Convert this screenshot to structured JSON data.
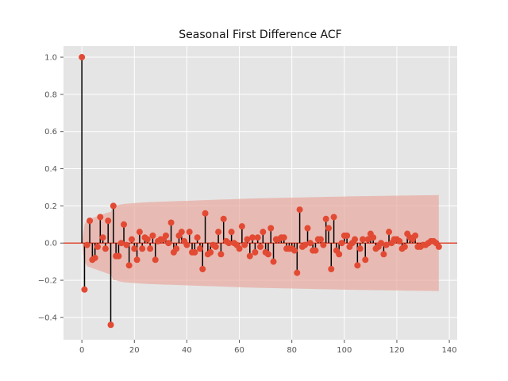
{
  "chart_data": {
    "type": "stem",
    "title": "Seasonal First Difference ACF",
    "xlabel": "",
    "ylabel": "",
    "xlim": [
      -7,
      143
    ],
    "ylim": [
      -0.52,
      1.06
    ],
    "xticks": [
      0,
      20,
      40,
      60,
      80,
      100,
      120,
      140
    ],
    "yticks": [
      -0.4,
      -0.2,
      0.0,
      0.2,
      0.4,
      0.6,
      0.8,
      1.0
    ],
    "xtick_labels": [
      "0",
      "20",
      "40",
      "60",
      "80",
      "100",
      "120",
      "140"
    ],
    "ytick_labels": [
      "−0.4",
      "−0.2",
      "0.0",
      "0.2",
      "0.4",
      "0.6",
      "0.8",
      "1.0"
    ],
    "grid": true,
    "lags": [
      0,
      1,
      2,
      3,
      4,
      5,
      6,
      7,
      8,
      9,
      10,
      11,
      12,
      13,
      14,
      15,
      16,
      17,
      18,
      19,
      20,
      21,
      22,
      23,
      24,
      25,
      26,
      27,
      28,
      29,
      30,
      31,
      32,
      33,
      34,
      35,
      36,
      37,
      38,
      39,
      40,
      41,
      42,
      43,
      44,
      45,
      46,
      47,
      48,
      49,
      50,
      51,
      52,
      53,
      54,
      55,
      56,
      57,
      58,
      59,
      60,
      61,
      62,
      63,
      64,
      65,
      66,
      67,
      68,
      69,
      70,
      71,
      72,
      73,
      74,
      75,
      76,
      77,
      78,
      79,
      80,
      81,
      82,
      83,
      84,
      85,
      86,
      87,
      88,
      89,
      90,
      91,
      92,
      93,
      94,
      95,
      96,
      97,
      98,
      99,
      100,
      101,
      102,
      103,
      104,
      105,
      106,
      107,
      108,
      109,
      110,
      111,
      112,
      113,
      114,
      115,
      116,
      117,
      118,
      119,
      120,
      121,
      122,
      123,
      124,
      125,
      126,
      127,
      128,
      129,
      130,
      131,
      132,
      133,
      134,
      135,
      136
    ],
    "values": [
      1.0,
      -0.25,
      -0.01,
      0.12,
      -0.09,
      -0.08,
      -0.02,
      0.14,
      0.03,
      -0.03,
      0.12,
      -0.44,
      0.2,
      -0.07,
      -0.07,
      0.0,
      0.1,
      -0.01,
      -0.12,
      0.02,
      -0.03,
      -0.09,
      0.06,
      -0.03,
      0.03,
      0.02,
      -0.03,
      0.04,
      -0.09,
      0.01,
      0.02,
      0.02,
      0.04,
      0.0,
      0.11,
      -0.05,
      -0.03,
      0.04,
      0.06,
      0.01,
      -0.01,
      0.06,
      -0.05,
      -0.05,
      0.03,
      -0.03,
      -0.14,
      0.16,
      -0.06,
      -0.05,
      -0.01,
      -0.02,
      0.06,
      -0.06,
      0.13,
      0.01,
      0.0,
      0.06,
      0.0,
      -0.01,
      -0.03,
      0.09,
      -0.01,
      0.02,
      -0.07,
      0.03,
      -0.05,
      0.03,
      -0.02,
      0.06,
      -0.05,
      -0.06,
      0.08,
      -0.1,
      0.02,
      0.02,
      0.03,
      0.03,
      -0.03,
      -0.03,
      -0.03,
      -0.04,
      -0.16,
      0.18,
      -0.02,
      -0.01,
      0.08,
      0.0,
      -0.04,
      -0.04,
      0.02,
      0.02,
      -0.01,
      0.13,
      0.08,
      -0.14,
      0.14,
      -0.04,
      -0.06,
      0.0,
      0.04,
      0.04,
      -0.02,
      0.0,
      0.02,
      -0.12,
      -0.03,
      0.02,
      -0.09,
      0.02,
      0.05,
      0.03,
      -0.03,
      -0.02,
      0.0,
      -0.06,
      -0.01,
      0.06,
      0.0,
      0.02,
      0.02,
      0.01,
      -0.03,
      -0.02,
      0.05,
      0.03,
      0.02,
      0.04,
      -0.02,
      -0.02,
      -0.01,
      -0.01,
      0.0,
      0.01,
      0.01,
      0.0,
      -0.02
    ],
    "confint_upper": [
      0.0,
      0.1,
      0.125,
      0.13,
      0.135,
      0.14,
      0.145,
      0.15,
      0.155,
      0.16,
      0.165,
      0.168,
      0.2,
      0.2,
      0.205,
      0.208,
      0.211,
      0.212,
      0.213,
      0.214,
      0.215,
      0.216,
      0.217,
      0.218,
      0.219,
      0.22,
      0.2205,
      0.221,
      0.2215,
      0.222,
      0.2225,
      0.223,
      0.2235,
      0.224,
      0.2245,
      0.225,
      0.2255,
      0.226,
      0.2265,
      0.227,
      0.2275,
      0.228,
      0.2285,
      0.229,
      0.2295,
      0.23,
      0.2305,
      0.231,
      0.2315,
      0.232,
      0.2325,
      0.233,
      0.2335,
      0.234,
      0.2345,
      0.235,
      0.2355,
      0.236,
      0.2365,
      0.237,
      0.2375,
      0.238,
      0.2385,
      0.239,
      0.2395,
      0.24,
      0.2403,
      0.2406,
      0.2409,
      0.2412,
      0.2415,
      0.2418,
      0.2421,
      0.2424,
      0.2427,
      0.243,
      0.2433,
      0.2436,
      0.2439,
      0.2442,
      0.2445,
      0.2448,
      0.2451,
      0.2454,
      0.2457,
      0.246,
      0.2463,
      0.2466,
      0.2469,
      0.2472,
      0.2475,
      0.2478,
      0.2481,
      0.2484,
      0.2487,
      0.249,
      0.2493,
      0.2496,
      0.2499,
      0.2502,
      0.2505,
      0.2508,
      0.2511,
      0.2514,
      0.2517,
      0.252,
      0.2522,
      0.2524,
      0.2526,
      0.2528,
      0.253,
      0.2532,
      0.2534,
      0.2536,
      0.2538,
      0.254,
      0.2542,
      0.2544,
      0.2546,
      0.2548,
      0.255,
      0.2552,
      0.2554,
      0.2556,
      0.2558,
      0.256,
      0.2562,
      0.2564,
      0.2566,
      0.2568,
      0.257,
      0.2572,
      0.2574,
      0.2576,
      0.2578,
      0.258,
      0.2582
    ],
    "colors": {
      "plot_bg": "#e5e5e5",
      "grid": "#ffffff",
      "stem": "#000000",
      "marker": "#e24a33",
      "zero_line": "#e24a33",
      "confint": "#e8a9a0",
      "tick_label": "#555555"
    }
  }
}
